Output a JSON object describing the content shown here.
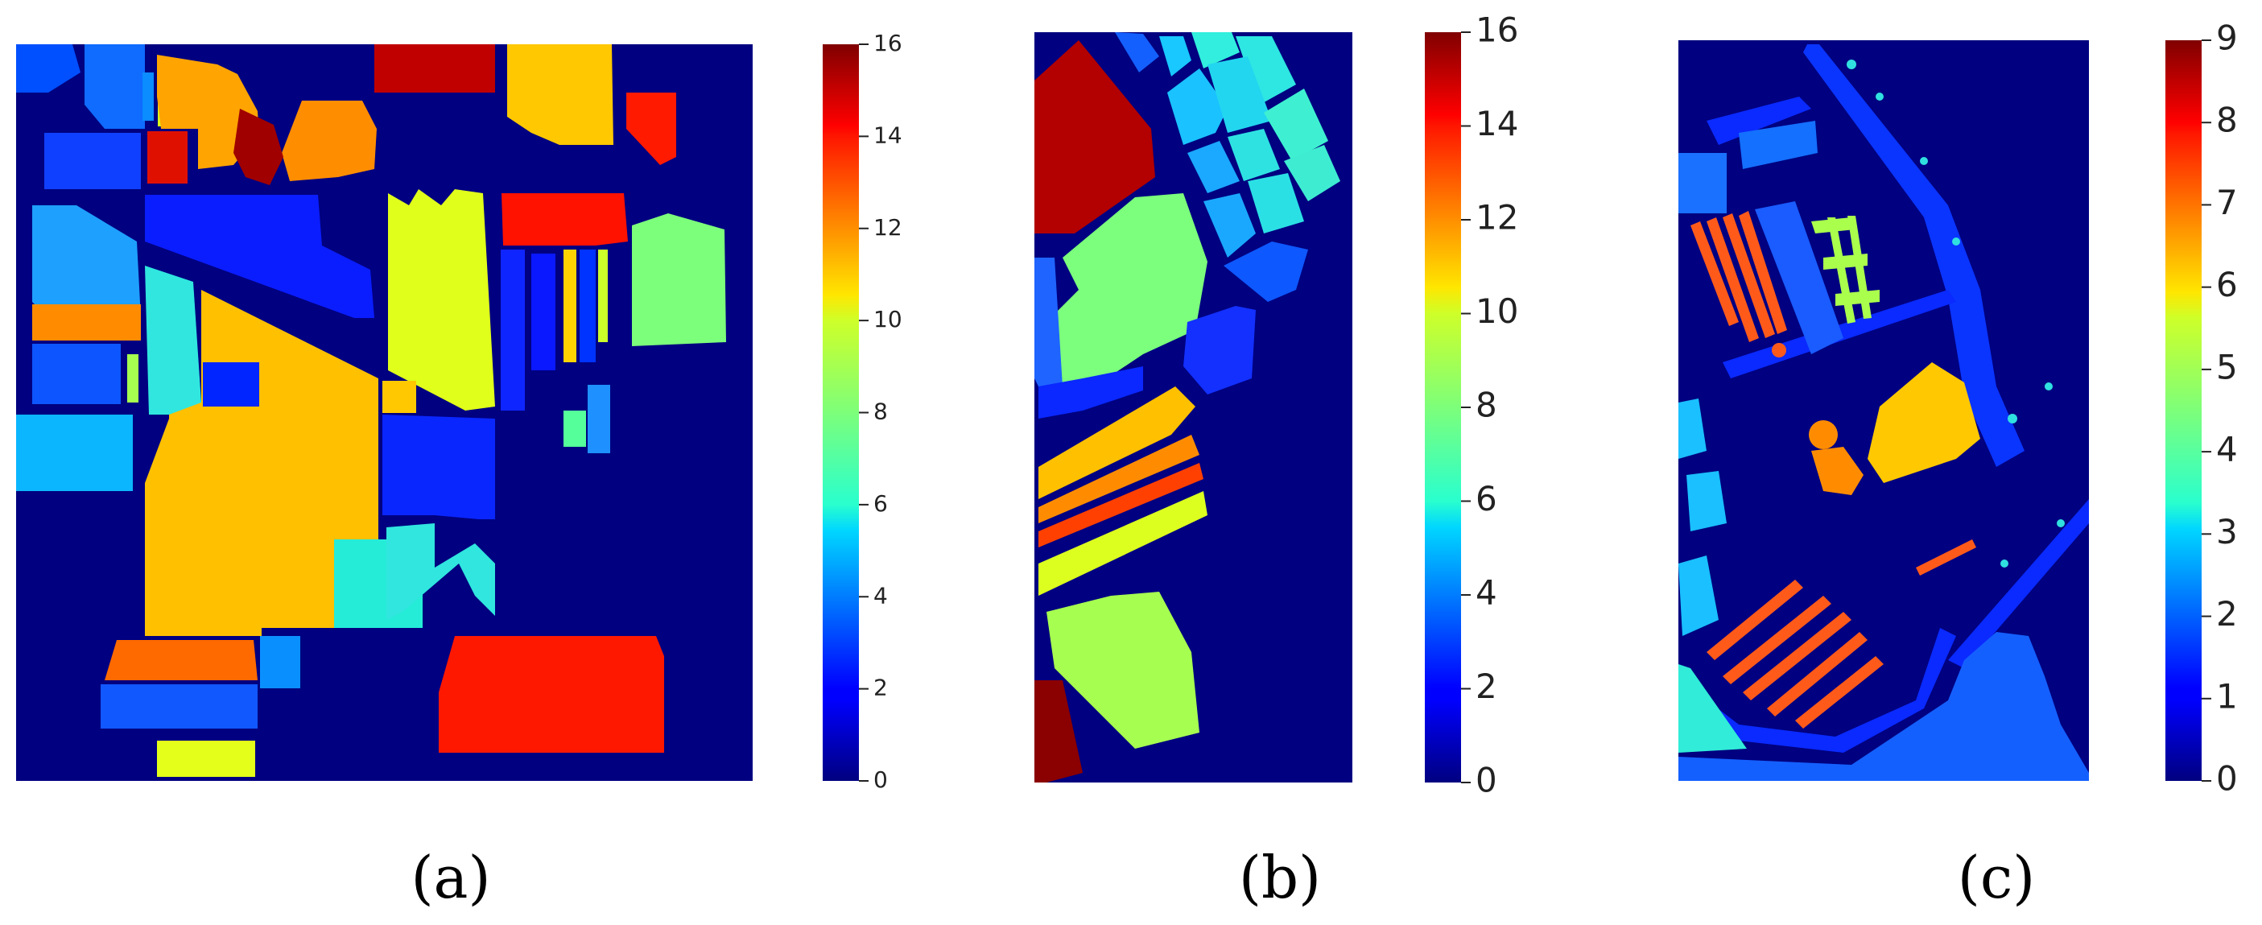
{
  "chart_data": [
    {
      "type": "heatmap",
      "id": "a",
      "caption": "(a)",
      "colormap": "jet",
      "background_value": 0,
      "colorbar": {
        "min": 0,
        "max": 16,
        "ticks": [
          0,
          2,
          4,
          6,
          8,
          10,
          12,
          14,
          16
        ]
      }
    },
    {
      "type": "heatmap",
      "id": "b",
      "caption": "(b)",
      "colormap": "jet",
      "background_value": 0,
      "colorbar": {
        "min": 0,
        "max": 16,
        "ticks": [
          0,
          2,
          4,
          6,
          8,
          10,
          12,
          14,
          16
        ]
      }
    },
    {
      "type": "heatmap",
      "id": "c",
      "caption": "(c)",
      "colormap": "jet",
      "background_value": 0,
      "colorbar": {
        "min": 0,
        "max": 9,
        "ticks": [
          0,
          1,
          2,
          3,
          4,
          5,
          6,
          7,
          8,
          9
        ]
      }
    }
  ]
}
